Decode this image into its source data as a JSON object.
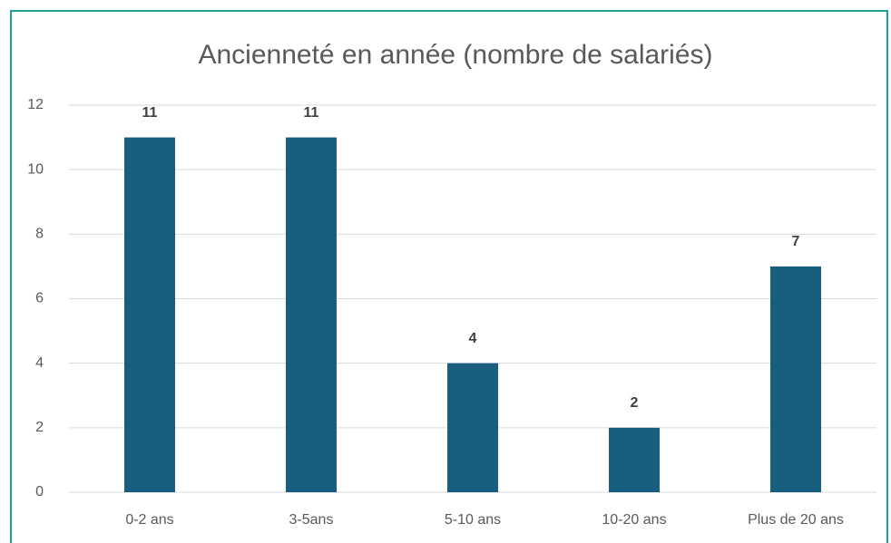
{
  "chart_data": {
    "type": "bar",
    "title": "Ancienneté en année (nombre de salariés)",
    "categories": [
      "0-2 ans",
      "3-5ans",
      "5-10 ans",
      "10-20 ans",
      "Plus de 20 ans"
    ],
    "values": [
      11,
      11,
      4,
      2,
      7
    ],
    "color": "#175e7f",
    "ylim": [
      0,
      12
    ],
    "yticks": [
      0,
      2,
      4,
      6,
      8,
      10,
      12
    ],
    "grid": true
  }
}
